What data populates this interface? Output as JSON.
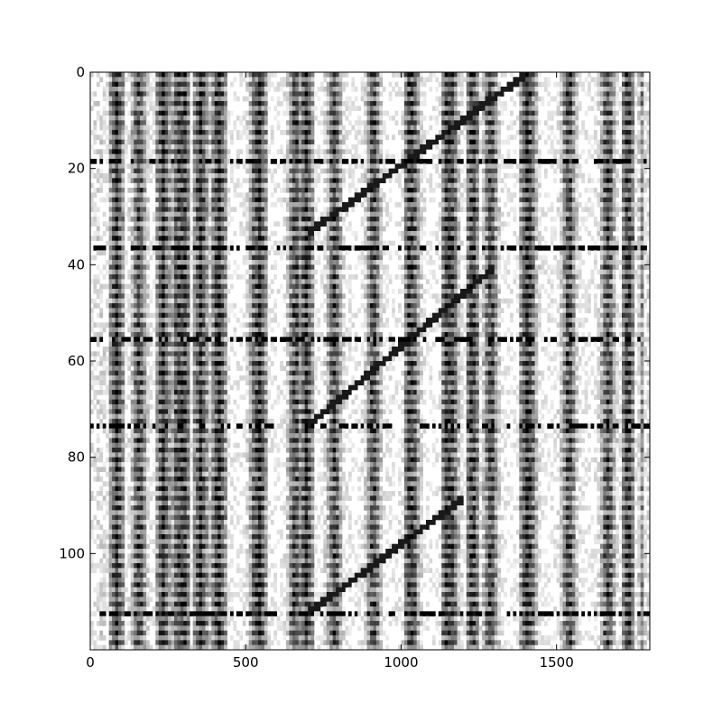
{
  "chart_data": {
    "type": "heatmap",
    "title": "",
    "xlabel": "",
    "ylabel": "",
    "xlim": [
      0,
      1800
    ],
    "ylim": [
      120,
      0
    ],
    "x_tick_labels": [
      "0",
      "500",
      "1000",
      "1500"
    ],
    "y_tick_labels": [
      "0",
      "20",
      "40",
      "60",
      "80",
      "100"
    ],
    "x_ticks": [
      0,
      500,
      1000,
      1500
    ],
    "y_ticks": [
      0,
      20,
      40,
      60,
      80,
      100
    ],
    "colormap": "grayscale (white = low, black = high)",
    "grid": false,
    "colorbar": false,
    "image_rows": 120,
    "image_cols": 1800,
    "dark_vertical_bands_x": [
      85,
      235,
      300,
      355,
      415,
      545,
      695,
      1030,
      1150,
      1230,
      1405,
      1730
    ],
    "diagonal_features": [
      {
        "x_start": 700,
        "y_start": 33,
        "x_end": 1400,
        "y_end": 0
      },
      {
        "x_start": 700,
        "y_start": 73,
        "x_end": 1300,
        "y_end": 40
      },
      {
        "x_start": 700,
        "y_start": 112,
        "x_end": 1200,
        "y_end": 88
      }
    ],
    "horizontal_artifacts_y": [
      18,
      36,
      55,
      73,
      112
    ]
  },
  "colors": {
    "ink": "#000000",
    "background": "#ffffff"
  }
}
